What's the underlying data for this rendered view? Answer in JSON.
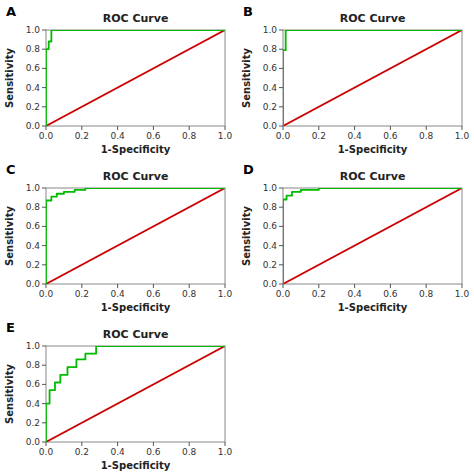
{
  "chart_data": [
    {
      "type": "line",
      "title": "ROC Curve",
      "annotations": [
        "A"
      ],
      "x_label": "1-Specificity",
      "y_label": "Sensitivity",
      "xlim": [
        0.0,
        1.0
      ],
      "ylim": [
        0.0,
        1.0
      ],
      "xticks": [
        {
          "value": 0.0,
          "label": "0.0"
        },
        0.2,
        0.4,
        0.6,
        0.8,
        {
          "value": 1.0,
          "label": "1.0"
        }
      ],
      "yticks": [
        {
          "value": 0.0,
          "label": "0.0"
        },
        0.2,
        0.4,
        0.6,
        0.8,
        {
          "value": 1.0,
          "label": "1.0"
        }
      ],
      "grid": false,
      "series": [
        {
          "color": "#cc0000",
          "x": [
            0,
            1
          ],
          "values": [
            0,
            1
          ]
        },
        {
          "color": "#00bb00",
          "x": [
            0.0,
            0.0,
            0.015,
            0.015,
            0.03,
            0.03,
            1.0
          ],
          "values": [
            0.0,
            0.8,
            0.8,
            0.88,
            0.88,
            1.0,
            1.0
          ]
        }
      ]
    },
    {
      "type": "line",
      "title": "ROC Curve",
      "annotations": [
        "B"
      ],
      "x_label": "1-Specificity",
      "y_label": "Sensitivity",
      "xlim": [
        0.0,
        1.0
      ],
      "ylim": [
        0.0,
        1.0
      ],
      "xticks": [
        {
          "value": 0.0,
          "label": "0.0"
        },
        0.2,
        0.4,
        0.6,
        0.8,
        {
          "value": 1.0,
          "label": "1.0"
        }
      ],
      "yticks": [
        {
          "value": 0.0,
          "label": "0.0"
        },
        0.2,
        0.4,
        0.6,
        0.8,
        {
          "value": 1.0,
          "label": "1.0"
        }
      ],
      "grid": false,
      "series": [
        {
          "color": "#cc0000",
          "x": [
            0,
            1
          ],
          "values": [
            0,
            1
          ]
        },
        {
          "color": "#00bb00",
          "x": [
            0.0,
            0.0,
            0.015,
            0.015,
            1.0
          ],
          "values": [
            0.0,
            0.79,
            0.79,
            1.0,
            1.0
          ]
        }
      ]
    },
    {
      "type": "line",
      "title": "ROC Curve",
      "annotations": [
        "C"
      ],
      "x_label": "1-Specificity",
      "y_label": "Sensitivity",
      "xlim": [
        0.0,
        1.0
      ],
      "ylim": [
        0.0,
        1.0
      ],
      "xticks": [
        {
          "value": 0.0,
          "label": "0.0"
        },
        0.2,
        0.4,
        0.6,
        0.8,
        {
          "value": 1.0,
          "label": "1.0"
        }
      ],
      "yticks": [
        {
          "value": 0.0,
          "label": "0.0"
        },
        0.2,
        0.4,
        0.6,
        0.8,
        {
          "value": 1.0,
          "label": "1.0"
        }
      ],
      "grid": false,
      "series": [
        {
          "color": "#cc0000",
          "x": [
            0,
            1
          ],
          "values": [
            0,
            1
          ]
        },
        {
          "color": "#00bb00",
          "x": [
            0.0,
            0.0,
            0.03,
            0.03,
            0.06,
            0.06,
            0.1,
            0.1,
            0.16,
            0.16,
            0.22,
            0.22,
            1.0
          ],
          "values": [
            0.0,
            0.87,
            0.87,
            0.91,
            0.91,
            0.94,
            0.94,
            0.96,
            0.96,
            0.98,
            0.98,
            1.0,
            1.0
          ]
        }
      ]
    },
    {
      "type": "line",
      "title": "ROC Curve",
      "annotations": [
        "D"
      ],
      "x_label": "1-Specificity",
      "y_label": "Sensitivity",
      "xlim": [
        0.0,
        1.0
      ],
      "ylim": [
        0.0,
        1.0
      ],
      "xticks": [
        {
          "value": 0.0,
          "label": "0.0"
        },
        0.2,
        0.4,
        0.6,
        0.8,
        {
          "value": 1.0,
          "label": "1.0"
        }
      ],
      "yticks": [
        {
          "value": 0.0,
          "label": "0.0"
        },
        0.2,
        0.4,
        0.6,
        0.8,
        {
          "value": 1.0,
          "label": "1.0"
        }
      ],
      "grid": false,
      "series": [
        {
          "color": "#cc0000",
          "x": [
            0,
            1
          ],
          "values": [
            0,
            1
          ]
        },
        {
          "color": "#00bb00",
          "x": [
            0.0,
            0.0,
            0.02,
            0.02,
            0.05,
            0.05,
            0.1,
            0.1,
            0.2,
            0.2,
            1.0
          ],
          "values": [
            0.0,
            0.88,
            0.88,
            0.92,
            0.92,
            0.96,
            0.96,
            0.98,
            0.98,
            1.0,
            1.0
          ]
        }
      ]
    },
    {
      "type": "line",
      "title": "ROC Curve",
      "annotations": [
        "E"
      ],
      "x_label": "1-Specificity",
      "y_label": "Sensitivity",
      "xlim": [
        0.0,
        1.0
      ],
      "ylim": [
        0.0,
        1.0
      ],
      "xticks": [
        {
          "value": 0.0,
          "label": "0.0"
        },
        0.2,
        0.4,
        0.6,
        0.8,
        {
          "value": 1.0,
          "label": "1.0"
        }
      ],
      "yticks": [
        {
          "value": 0.0,
          "label": "0.0"
        },
        0.2,
        0.4,
        0.6,
        0.8,
        {
          "value": 1.0,
          "label": "1.0"
        }
      ],
      "grid": false,
      "series": [
        {
          "color": "#cc0000",
          "x": [
            0,
            1
          ],
          "values": [
            0,
            1
          ]
        },
        {
          "color": "#00bb00",
          "x": [
            0.0,
            0.0,
            0.02,
            0.02,
            0.05,
            0.05,
            0.08,
            0.08,
            0.12,
            0.12,
            0.17,
            0.17,
            0.22,
            0.22,
            0.28,
            0.28,
            1.0
          ],
          "values": [
            0.0,
            0.4,
            0.4,
            0.54,
            0.54,
            0.62,
            0.62,
            0.7,
            0.7,
            0.78,
            0.78,
            0.86,
            0.86,
            0.92,
            0.92,
            1.0,
            1.0
          ]
        }
      ]
    }
  ]
}
